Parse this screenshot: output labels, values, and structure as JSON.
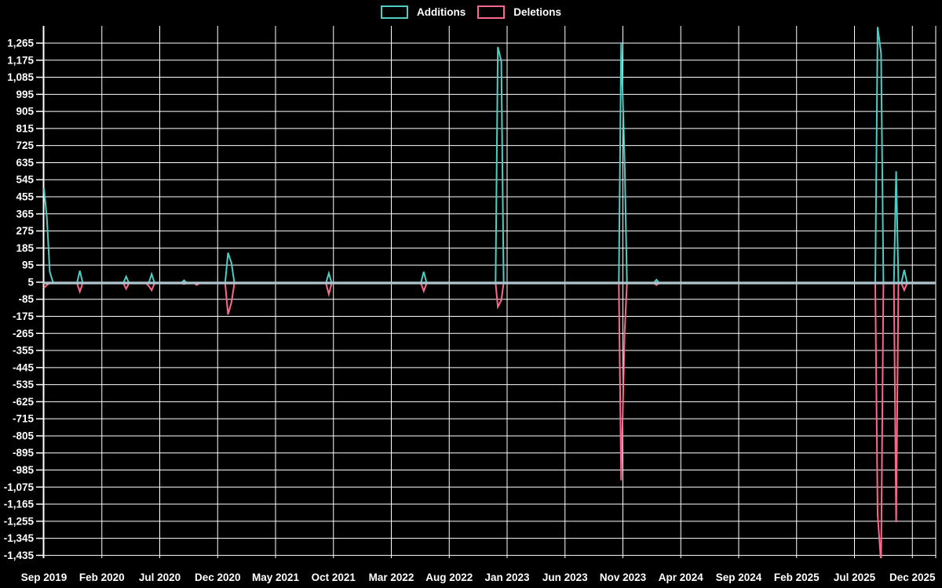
{
  "legend": {
    "items": [
      {
        "label": "Additions",
        "color": "#4ecdc4"
      },
      {
        "label": "Deletions",
        "color": "#f96a8a"
      }
    ]
  },
  "colors": {
    "background": "#000000",
    "grid": "#ffffff",
    "text": "#ffffff",
    "baseline": "#aec4ce",
    "additions": "#4ecdc4",
    "deletions": "#f96a8a"
  },
  "chart_data": {
    "type": "line",
    "title": "",
    "xlabel": "",
    "ylabel": "",
    "grid": true,
    "legend_position": "top-center",
    "x_axis": {
      "unit": "months since Sep 2019",
      "tick_interval_months": 5,
      "tick_labels": [
        "Sep 2019",
        "Feb 2020",
        "Jul 2020",
        "Dec 2020",
        "May 2021",
        "Oct 2021",
        "Mar 2022",
        "Aug 2022",
        "Jan 2023",
        "Jun 2023",
        "Nov 2023",
        "Apr 2024",
        "Sep 2024",
        "Feb 2025",
        "Jul 2025",
        "Dec 2025"
      ],
      "x_range_months": [
        0,
        77
      ]
    },
    "y_axis": {
      "min": -1435,
      "max": 1265,
      "step": 90,
      "baseline_value": 0,
      "tick_labels": [
        "1,265",
        "1,175",
        "1,085",
        "995",
        "905",
        "815",
        "725",
        "635",
        "545",
        "455",
        "365",
        "275",
        "185",
        "95",
        "5",
        "-85",
        "-175",
        "-265",
        "-355",
        "-445",
        "-535",
        "-625",
        "-715",
        "-805",
        "-895",
        "-985",
        "-1,075",
        "-1,165",
        "-1,255",
        "-1,345",
        "-1,435"
      ]
    },
    "series": [
      {
        "name": "Additions",
        "color": "#4ecdc4",
        "points": [
          [
            0,
            500
          ],
          [
            0.25,
            345
          ],
          [
            0.5,
            60
          ],
          [
            0.8,
            0
          ],
          [
            2.85,
            0
          ],
          [
            3.1,
            65
          ],
          [
            3.35,
            0
          ],
          [
            6.85,
            0
          ],
          [
            7.1,
            35
          ],
          [
            7.35,
            0
          ],
          [
            9.05,
            0
          ],
          [
            9.3,
            48
          ],
          [
            9.55,
            0
          ],
          [
            11.85,
            0
          ],
          [
            12.1,
            15
          ],
          [
            12.35,
            0
          ],
          [
            15.65,
            0
          ],
          [
            15.9,
            160
          ],
          [
            16.2,
            105
          ],
          [
            16.45,
            0
          ],
          [
            24.35,
            0
          ],
          [
            24.6,
            52
          ],
          [
            24.85,
            0
          ],
          [
            32.55,
            0
          ],
          [
            32.8,
            60
          ],
          [
            33.05,
            0
          ],
          [
            39.0,
            0
          ],
          [
            39.2,
            1245
          ],
          [
            39.5,
            1170
          ],
          [
            39.7,
            0
          ],
          [
            49.65,
            0
          ],
          [
            49.85,
            1270
          ],
          [
            50.15,
            640
          ],
          [
            50.35,
            0
          ],
          [
            52.65,
            0
          ],
          [
            52.9,
            18
          ],
          [
            53.15,
            0
          ],
          [
            71.8,
            0
          ],
          [
            72.0,
            1350
          ],
          [
            72.3,
            1210
          ],
          [
            72.5,
            0
          ],
          [
            73.4,
            0
          ],
          [
            73.6,
            590
          ],
          [
            73.8,
            0
          ],
          [
            74.05,
            0
          ],
          [
            74.3,
            70
          ],
          [
            74.55,
            0
          ],
          [
            77,
            0
          ]
        ]
      },
      {
        "name": "Deletions",
        "color": "#f96a8a",
        "points": [
          [
            0,
            -25
          ],
          [
            0.25,
            -10
          ],
          [
            0.5,
            0
          ],
          [
            2.85,
            0
          ],
          [
            3.1,
            -45
          ],
          [
            3.35,
            0
          ],
          [
            6.85,
            0
          ],
          [
            7.1,
            -30
          ],
          [
            7.35,
            0
          ],
          [
            8.8,
            0
          ],
          [
            9.05,
            -15
          ],
          [
            9.3,
            -38
          ],
          [
            9.55,
            0
          ],
          [
            11.85,
            0
          ],
          [
            12.1,
            -5
          ],
          [
            12.35,
            0
          ],
          [
            12.95,
            0
          ],
          [
            13.2,
            -10
          ],
          [
            13.45,
            0
          ],
          [
            15.65,
            0
          ],
          [
            15.9,
            -165
          ],
          [
            16.2,
            -100
          ],
          [
            16.45,
            0
          ],
          [
            24.35,
            0
          ],
          [
            24.6,
            -58
          ],
          [
            24.85,
            0
          ],
          [
            32.55,
            0
          ],
          [
            32.8,
            -42
          ],
          [
            33.05,
            0
          ],
          [
            39.0,
            0
          ],
          [
            39.2,
            -125
          ],
          [
            39.5,
            -90
          ],
          [
            39.7,
            0
          ],
          [
            49.65,
            0
          ],
          [
            49.85,
            -1040
          ],
          [
            50.15,
            -260
          ],
          [
            50.35,
            0
          ],
          [
            52.65,
            0
          ],
          [
            52.9,
            -10
          ],
          [
            53.15,
            0
          ],
          [
            71.8,
            0
          ],
          [
            72.0,
            -1220
          ],
          [
            72.3,
            -1480
          ],
          [
            72.5,
            0
          ],
          [
            73.4,
            0
          ],
          [
            73.6,
            -1260
          ],
          [
            73.8,
            0
          ],
          [
            74.05,
            0
          ],
          [
            74.3,
            -37
          ],
          [
            74.55,
            0
          ],
          [
            77,
            0
          ]
        ]
      }
    ]
  }
}
